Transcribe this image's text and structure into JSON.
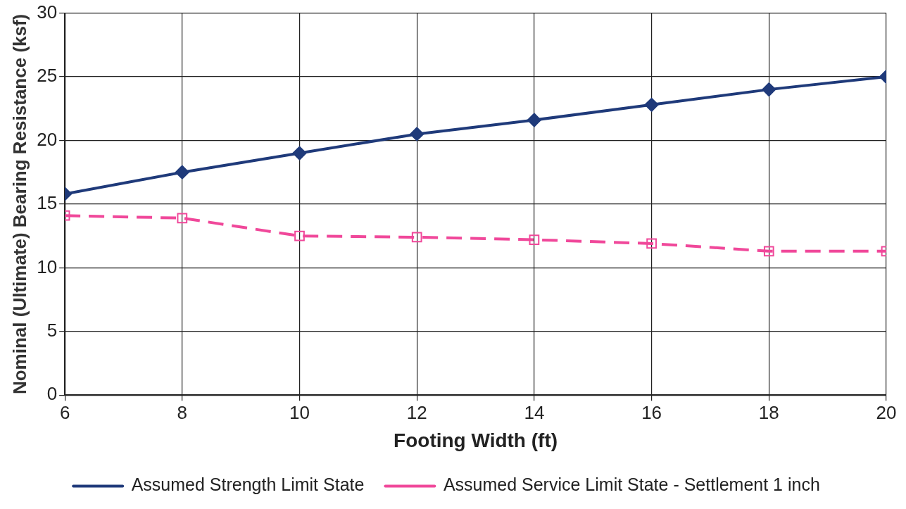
{
  "chart_data": {
    "type": "line",
    "xlabel": "Footing Width (ft)",
    "ylabel": "Nominal (Ultimate) Bearing Resistance (ksf)",
    "x": [
      6,
      8,
      10,
      12,
      14,
      16,
      18,
      20
    ],
    "xlim": [
      6,
      20
    ],
    "xticks": [
      6,
      8,
      10,
      12,
      14,
      16,
      18,
      20
    ],
    "ylim": [
      0,
      30
    ],
    "yticks": [
      0,
      5,
      10,
      15,
      20,
      25,
      30
    ],
    "grid": true,
    "legend": "bottom",
    "series": [
      {
        "name": "Assumed Strength Limit State",
        "color": "#1f3a7a",
        "marker": "diamond",
        "line_style": "solid",
        "values": [
          15.8,
          17.5,
          19.0,
          20.5,
          21.6,
          22.8,
          24.0,
          25.0
        ]
      },
      {
        "name": "Assumed Service Limit State - Settlement 1 inch",
        "color": "#f0489a",
        "marker": "square",
        "line_style": "dashed",
        "values": [
          14.1,
          13.9,
          12.5,
          12.4,
          12.2,
          11.9,
          11.3,
          11.3
        ]
      }
    ]
  }
}
